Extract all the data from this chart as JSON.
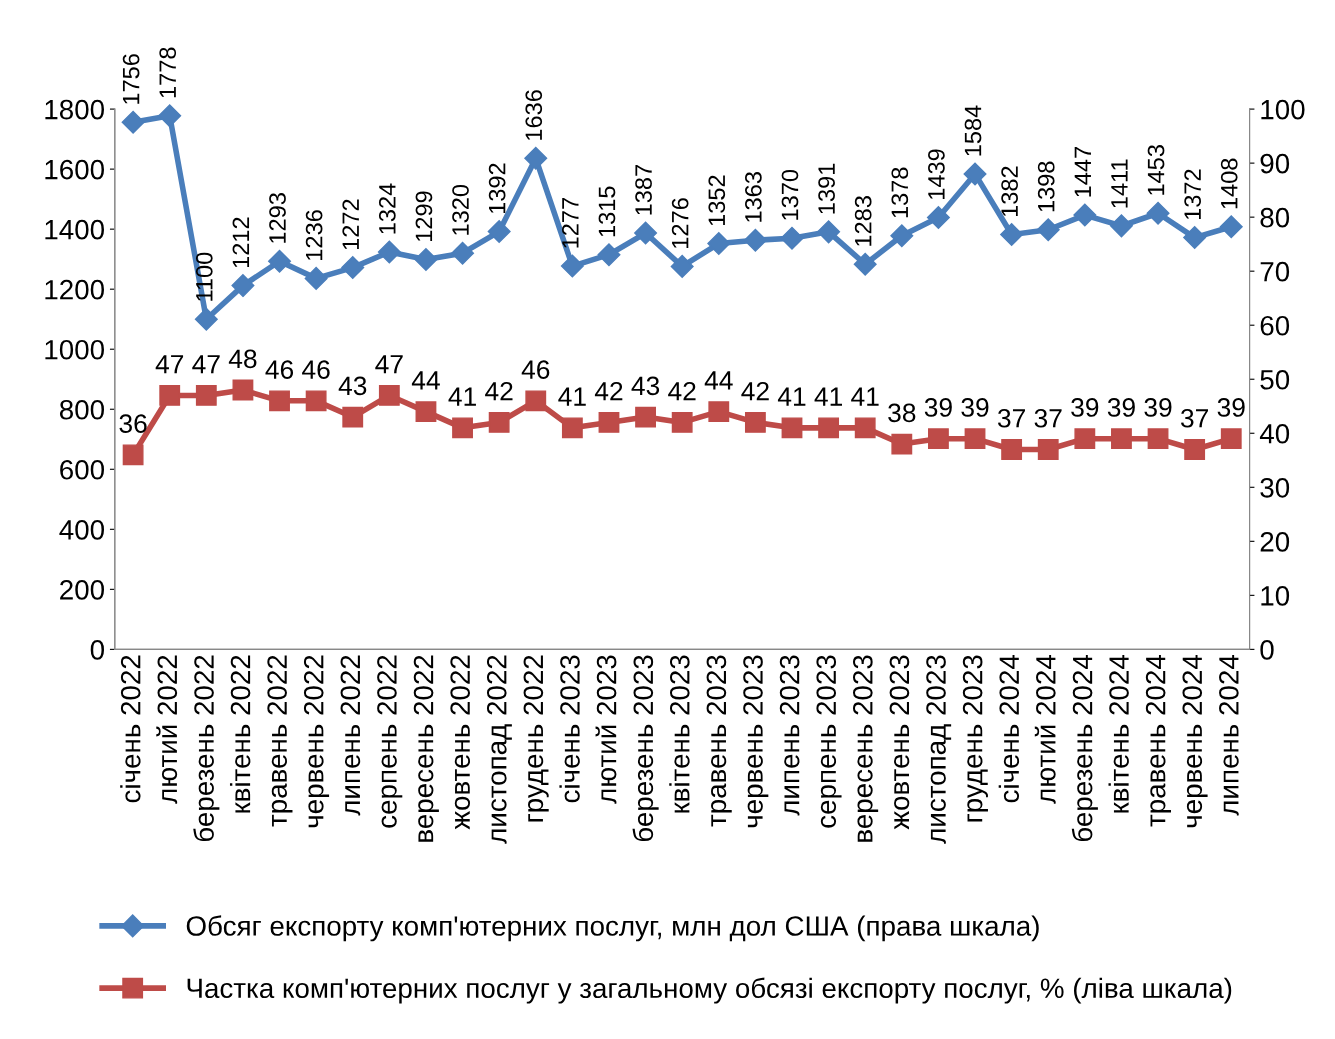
{
  "chart_data": {
    "type": "line",
    "categories": [
      "січень 2022",
      "лютий 2022",
      "березень 2022",
      "квітень 2022",
      "травень 2022",
      "червень 2022",
      "липень 2022",
      "серпень 2022",
      "вересень 2022",
      "жовтень 2022",
      "листопад 2022",
      "грудень 2022",
      "січень 2023",
      "лютий 2023",
      "березень 2023",
      "квітень 2023",
      "травень 2023",
      "червень 2023",
      "липень 2023",
      "серпень 2023",
      "вересень 2023",
      "жовтень 2023",
      "листопад 2023",
      "грудень 2023",
      "січень 2024",
      "лютий 2024",
      "березень 2024",
      "квітень 2024",
      "травень 2024",
      "червень 2024",
      "липень 2024"
    ],
    "series": [
      {
        "name": "Обсяг експорту комп'ютерних послуг, млн дол США (права шкала)",
        "color": "#4a7ebb",
        "marker": "diamond",
        "values": [
          1756,
          1778,
          1100,
          1212,
          1293,
          1236,
          1272,
          1324,
          1299,
          1320,
          1392,
          1636,
          1277,
          1315,
          1387,
          1276,
          1352,
          1363,
          1370,
          1391,
          1283,
          1378,
          1439,
          1584,
          1382,
          1398,
          1447,
          1411,
          1453,
          1372,
          1408
        ]
      },
      {
        "name": "Частка комп'ютерних послуг у загальному обсязі експорту послуг, % (ліва шкала)",
        "color": "#be4b48",
        "marker": "square",
        "axis": "y2",
        "values": [
          36,
          47,
          47,
          48,
          46,
          46,
          43,
          47,
          44,
          41,
          42,
          46,
          41,
          42,
          43,
          42,
          44,
          42,
          41,
          41,
          41,
          38,
          39,
          39,
          37,
          37,
          39,
          39,
          39,
          37,
          39
        ]
      }
    ],
    "ylim": [
      0,
      1800
    ],
    "yticks": [
      0,
      200,
      400,
      600,
      800,
      1000,
      1200,
      1400,
      1600,
      1800
    ],
    "y2lim": [
      0,
      100
    ],
    "y2ticks": [
      0,
      10,
      20,
      30,
      40,
      50,
      60,
      70,
      80,
      90,
      100
    ],
    "data_labels": true,
    "grid": false,
    "legend": "bottom",
    "line_style": "solid"
  }
}
